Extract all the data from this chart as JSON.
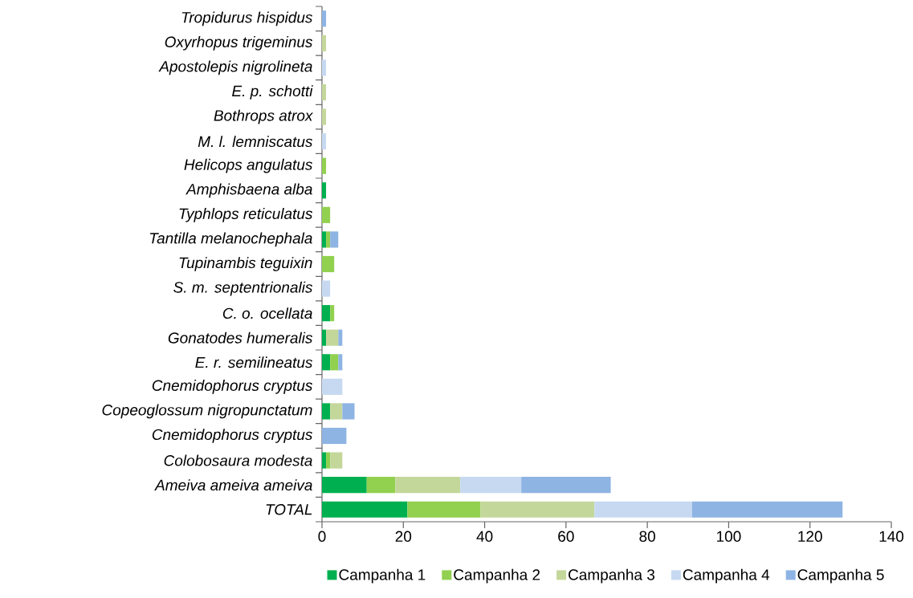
{
  "chart_data": {
    "type": "bar",
    "orientation": "horizontal",
    "stacked": true,
    "categories": [
      "Tropidurus hispidus",
      "Oxyrhopus trigeminus",
      "Apostolepis nigrolineta",
      "E. p. schotti",
      "Bothrops atrox",
      "M. l. lemniscatus",
      "Helicops angulatus",
      "Amphisbaena alba",
      "Typhlops reticulatus",
      "Tantilla melanochephala",
      "Tupinambis teguixin",
      "S. m. septentrionalis",
      "C. o. ocellata",
      "Gonatodes humeralis",
      "E. r. semilineatus",
      "Cnemidophorus cryptus",
      "Copeoglossum nigropunctatum",
      "Cnemidophorus cryptus",
      "Colobosaura modesta",
      "Ameiva ameiva ameiva",
      "TOTAL"
    ],
    "series": [
      {
        "name": "Campanha 1",
        "color": "#00b050",
        "values": [
          0,
          0,
          0,
          0,
          0,
          0,
          0,
          1,
          0,
          1,
          0,
          0,
          2,
          1,
          2,
          0,
          2,
          0,
          1,
          11,
          21
        ]
      },
      {
        "name": "Campanha 2",
        "color": "#92d050",
        "values": [
          0,
          0,
          0,
          0,
          0,
          0,
          1,
          0,
          2,
          1,
          3,
          0,
          1,
          0,
          2,
          0,
          0,
          0,
          1,
          7,
          18
        ]
      },
      {
        "name": "Campanha 3",
        "color": "#c4d79b",
        "values": [
          0,
          1,
          0,
          1,
          1,
          0,
          0,
          0,
          0,
          0,
          0,
          0,
          0,
          3,
          0,
          0,
          3,
          0,
          3,
          16,
          28
        ]
      },
      {
        "name": "Campanha 4",
        "color": "#c6d9f1",
        "values": [
          0,
          0,
          1,
          0,
          0,
          1,
          0,
          0,
          0,
          0,
          0,
          2,
          0,
          0,
          0,
          5,
          0,
          0,
          0,
          15,
          24
        ]
      },
      {
        "name": "Campanha 5",
        "color": "#8eb4e3",
        "values": [
          1,
          0,
          0,
          0,
          0,
          0,
          0,
          0,
          0,
          2,
          0,
          0,
          0,
          1,
          1,
          0,
          3,
          6,
          0,
          22,
          37
        ]
      }
    ],
    "xlim": [
      0,
      140
    ],
    "xticks": [
      0,
      20,
      40,
      60,
      80,
      100,
      120,
      140
    ],
    "grid": false,
    "legend": "bottom"
  }
}
